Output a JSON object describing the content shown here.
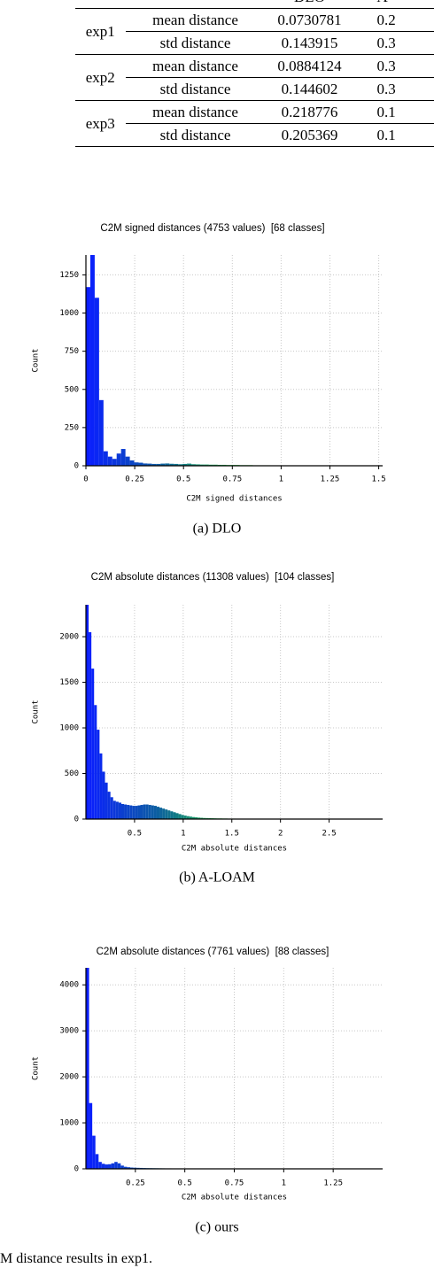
{
  "table": {
    "header": [
      "DLO",
      "A"
    ],
    "groups": [
      {
        "name": "exp1",
        "rows": [
          [
            "mean distance",
            "0.0730781",
            "0.2"
          ],
          [
            "std distance",
            "0.143915",
            "0.3"
          ]
        ]
      },
      {
        "name": "exp2",
        "rows": [
          [
            "mean distance",
            "0.0884124",
            "0.3"
          ],
          [
            "std distance",
            "0.144602",
            "0.3"
          ]
        ]
      },
      {
        "name": "exp3",
        "rows": [
          [
            "mean distance",
            "0.218776",
            "0.1"
          ],
          [
            "std distance",
            "0.205369",
            "0.1"
          ]
        ]
      }
    ]
  },
  "figures": [
    {
      "type": "histogram",
      "title": "C2M signed distances (4753 values)  [68 classes]",
      "xlabel": "C2M signed distances",
      "ylabel": "Count",
      "caption": "(a) DLO",
      "bins": [
        0,
        0.0225,
        0.045,
        0.0675,
        0.09,
        0.1125,
        0.135,
        0.1575,
        0.18,
        0.2025,
        0.225,
        0.2475,
        0.27,
        0.2925,
        0.315,
        0.3375,
        0.36,
        0.3825,
        0.405,
        0.4275,
        0.45,
        0.4725,
        0.495,
        0.5175,
        0.54,
        0.5625,
        0.585,
        0.6075,
        0.63,
        0.6525,
        0.675,
        0.6975,
        0.72,
        0.7425,
        0.765,
        0.7875,
        0.81,
        0.8325,
        0.855,
        0.8775,
        0.9,
        0.9225,
        0.945,
        0.9675,
        0.99,
        1.0125,
        1.035,
        1.0575,
        1.08,
        1.1025,
        1.125,
        1.1475,
        1.17,
        1.1925,
        1.215,
        1.2375,
        1.26,
        1.2825,
        1.305,
        1.3275,
        1.35,
        1.3725,
        1.395,
        1.4175,
        1.44,
        1.4625,
        1.485,
        1.5075,
        1.53
      ],
      "counts": [
        1170,
        1380,
        1100,
        430,
        95,
        60,
        45,
        80,
        110,
        60,
        35,
        22,
        20,
        15,
        14,
        12,
        12,
        14,
        15,
        13,
        12,
        10,
        12,
        14,
        10,
        9,
        8,
        8,
        7,
        7,
        6,
        6,
        5,
        5,
        5,
        4,
        4,
        4,
        3,
        3,
        3,
        3,
        2,
        2,
        2,
        2,
        2,
        2,
        2,
        2,
        1,
        1,
        1,
        1,
        1,
        1,
        1,
        1,
        1,
        1,
        1,
        1,
        1,
        1,
        1,
        1,
        1,
        1
      ],
      "xlim": [
        0,
        1.52
      ],
      "ylim": [
        0,
        1380
      ],
      "xticks": [
        0,
        0.25,
        0.5,
        0.75,
        1,
        1.25,
        1.5
      ],
      "yticks": [
        0,
        250,
        500,
        750,
        1000,
        1250
      ],
      "grid": true,
      "colormap": [
        "#0a1eff",
        "#0c5fa0",
        "#22c83c",
        "#7cff22",
        "#c8ff1e"
      ]
    },
    {
      "type": "histogram",
      "title": "C2M absolute distances (11308 values)  [104 classes]",
      "xlabel": "C2M absolute distances",
      "ylabel": "Count",
      "caption": "(b) A-LOAM",
      "bins": [
        0,
        0.028,
        0.056,
        0.084,
        0.112,
        0.14,
        0.168,
        0.196,
        0.224,
        0.252,
        0.28,
        0.308,
        0.336,
        0.364,
        0.392,
        0.42,
        0.448,
        0.476,
        0.504,
        0.532,
        0.56,
        0.588,
        0.616,
        0.644,
        0.672,
        0.7,
        0.728,
        0.756,
        0.784,
        0.812,
        0.84,
        0.868,
        0.896,
        0.924,
        0.952,
        0.98,
        1.008,
        1.036,
        1.064,
        1.092,
        1.12,
        1.148,
        1.176,
        1.204,
        1.232,
        1.26,
        1.288,
        1.316,
        1.344,
        1.372,
        1.4,
        1.428,
        1.456,
        1.484,
        1.512,
        1.54,
        1.568,
        1.596,
        1.624,
        1.652,
        1.68,
        1.708,
        1.736,
        1.764,
        1.792,
        1.82,
        1.848,
        1.876,
        1.904,
        1.932,
        1.96,
        1.988,
        2.016,
        2.044,
        2.072,
        2.1,
        2.128,
        2.156,
        2.184,
        2.212,
        2.24,
        2.268,
        2.296,
        2.324,
        2.352,
        2.38,
        2.408,
        2.436,
        2.464,
        2.492,
        2.52,
        2.548,
        2.576,
        2.604,
        2.632,
        2.66,
        2.688,
        2.716,
        2.744,
        2.772,
        2.8,
        2.828,
        2.856,
        2.884,
        2.912
      ],
      "counts": [
        2350,
        2050,
        1650,
        1250,
        980,
        720,
        520,
        400,
        300,
        240,
        200,
        190,
        180,
        165,
        160,
        155,
        150,
        145,
        145,
        150,
        155,
        160,
        160,
        155,
        150,
        145,
        135,
        125,
        115,
        105,
        95,
        85,
        75,
        65,
        55,
        45,
        38,
        32,
        27,
        22,
        19,
        16,
        14,
        12,
        11,
        10,
        9,
        8,
        7,
        7,
        6,
        6,
        5,
        5,
        5,
        4,
        4,
        4,
        4,
        3,
        3,
        3,
        3,
        3,
        3,
        2,
        2,
        2,
        2,
        2,
        2,
        2,
        2,
        2,
        2,
        2,
        2,
        1,
        1,
        1,
        1,
        1,
        1,
        1,
        1,
        1,
        1,
        1,
        1,
        1,
        1,
        1,
        1,
        1,
        1,
        1,
        1,
        1,
        1,
        1,
        1,
        1,
        1,
        1
      ],
      "xlim": [
        0,
        3.05
      ],
      "ylim": [
        0,
        2350
      ],
      "xticks": [
        0.5,
        1,
        1.5,
        2,
        2.5
      ],
      "yticks": [
        0,
        500,
        1000,
        1500,
        2000
      ],
      "grid": true,
      "colormap": [
        "#0a1eff",
        "#0c5fa0",
        "#22c83c",
        "#7cff22",
        "#c8ff1e"
      ]
    },
    {
      "type": "histogram",
      "title": "C2M absolute distances (7761 values)  [88 classes]",
      "xlabel": "C2M absolute distances",
      "ylabel": "Count",
      "caption": "(c) ours",
      "bins": [
        0,
        0.016,
        0.032,
        0.048,
        0.064,
        0.08,
        0.096,
        0.112,
        0.128,
        0.144,
        0.16,
        0.176,
        0.192,
        0.208,
        0.224,
        0.24,
        0.256,
        0.272,
        0.288,
        0.304,
        0.32,
        0.336,
        0.352,
        0.368,
        0.384,
        0.4,
        0.416,
        0.432,
        0.448,
        0.464,
        0.48,
        0.496,
        0.512,
        0.528,
        0.544,
        0.56,
        0.576,
        0.592,
        0.608,
        0.624,
        0.64,
        0.656,
        0.672,
        0.688,
        0.704,
        0.72,
        0.736,
        0.752,
        0.768,
        0.784,
        0.8,
        0.816,
        0.832,
        0.848,
        0.864,
        0.88,
        0.896,
        0.912,
        0.928,
        0.944,
        0.96,
        0.976,
        0.992,
        1.008,
        1.024,
        1.04,
        1.056,
        1.072,
        1.088,
        1.104,
        1.12,
        1.136,
        1.152,
        1.168,
        1.184,
        1.2,
        1.216,
        1.232,
        1.248,
        1.264,
        1.28,
        1.296,
        1.312,
        1.328,
        1.344,
        1.36,
        1.376,
        1.392,
        1.408
      ],
      "counts": [
        4370,
        1430,
        720,
        320,
        150,
        110,
        95,
        100,
        120,
        150,
        120,
        70,
        45,
        35,
        28,
        24,
        22,
        20,
        18,
        16,
        15,
        14,
        13,
        12,
        11,
        10,
        10,
        9,
        9,
        8,
        8,
        7,
        7,
        6,
        6,
        5,
        5,
        5,
        4,
        4,
        4,
        4,
        3,
        3,
        3,
        3,
        3,
        2,
        2,
        2,
        2,
        2,
        2,
        2,
        2,
        2,
        2,
        1,
        1,
        1,
        1,
        1,
        1,
        1,
        1,
        1,
        1,
        1,
        1,
        1,
        1,
        1,
        1,
        1,
        1,
        1,
        1,
        1,
        1,
        1,
        1,
        1,
        1,
        1,
        1,
        1,
        1,
        1
      ],
      "xlim": [
        0,
        1.5
      ],
      "ylim": [
        0,
        4370
      ],
      "xticks": [
        0.25,
        0.5,
        0.75,
        1,
        1.25
      ],
      "yticks": [
        0,
        1000,
        2000,
        3000,
        4000
      ],
      "grid": true,
      "colormap": [
        "#0a1eff",
        "#0c5fa0",
        "#22c83c",
        "#7cff22",
        "#c8ff1e"
      ]
    }
  ],
  "caption": "M distance results in exp1."
}
